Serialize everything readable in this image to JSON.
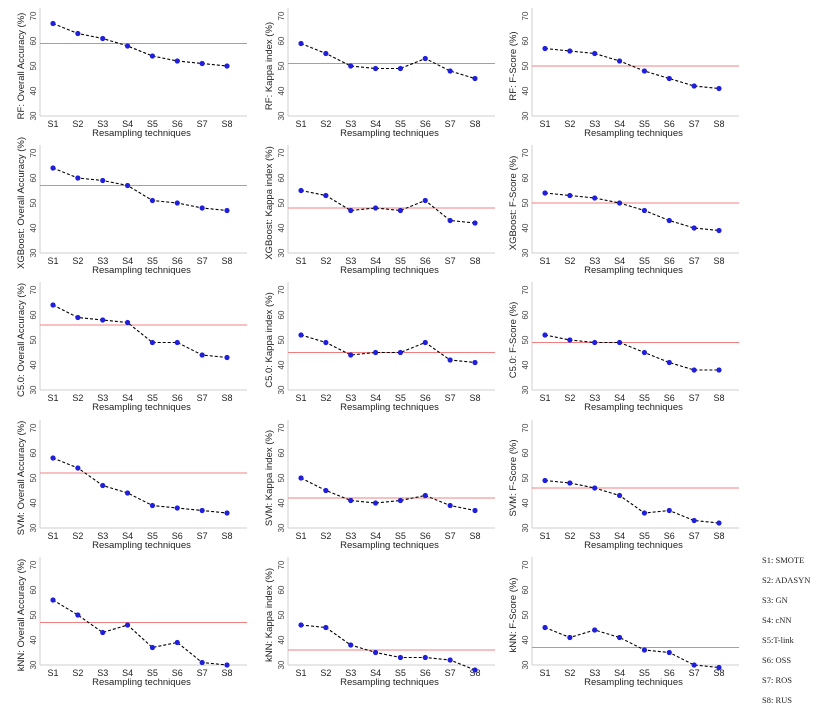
{
  "legend": {
    "items": [
      "S1: SMOTE",
      "S2: ADASYN",
      "S3: GN",
      "S4: cNN",
      "S5:T-link",
      "S6: OSS",
      "S7: ROS",
      "S8: RUS"
    ]
  },
  "colors": {
    "point": "#1f1fdc",
    "line": "#000000",
    "reference": "#f08080",
    "axis": "#cfcfcf",
    "text": "#444444"
  },
  "chart_data": [
    {
      "type": "line",
      "ylabel": "RF: Overall Accuracy (%)",
      "xlabel": "Resampling techniques",
      "categories": [
        "S1",
        "S2",
        "S3",
        "S4",
        "S5",
        "S6",
        "S7",
        "S8"
      ],
      "yticks": [
        30,
        40,
        50,
        60,
        70
      ],
      "ylim": [
        30,
        70
      ],
      "values": [
        67,
        63,
        61,
        58,
        54,
        52,
        51,
        50
      ],
      "reference": 59
    },
    {
      "type": "line",
      "ylabel": "RF: Kappa index (%)",
      "xlabel": "Resampling techniques",
      "categories": [
        "S1",
        "S2",
        "S3",
        "S4",
        "S5",
        "S6",
        "S7",
        "S8"
      ],
      "yticks": [
        30,
        40,
        50,
        60,
        70
      ],
      "ylim": [
        30,
        70
      ],
      "values": [
        59,
        55,
        50,
        49,
        49,
        53,
        48,
        45
      ],
      "reference": 51
    },
    {
      "type": "line",
      "ylabel": "RF: F-Score (%)",
      "xlabel": "Resampling techniques",
      "categories": [
        "S1",
        "S2",
        "S3",
        "S4",
        "S5",
        "S6",
        "S7",
        "S8"
      ],
      "yticks": [
        30,
        40,
        50,
        60,
        70
      ],
      "ylim": [
        30,
        70
      ],
      "values": [
        57,
        56,
        55,
        52,
        48,
        45,
        42,
        41
      ],
      "reference": 50
    },
    {
      "type": "line",
      "ylabel": "XGBoost: Overall Accuracy (%)",
      "xlabel": "Resampling techniques",
      "categories": [
        "S1",
        "S2",
        "S3",
        "S4",
        "S5",
        "S6",
        "S7",
        "S8"
      ],
      "yticks": [
        30,
        40,
        50,
        60,
        70
      ],
      "ylim": [
        30,
        70
      ],
      "values": [
        64,
        60,
        59,
        57,
        51,
        50,
        48,
        47
      ],
      "reference": 57
    },
    {
      "type": "line",
      "ylabel": "XGBoost: Kappa index (%)",
      "xlabel": "Resampling techniques",
      "categories": [
        "S1",
        "S2",
        "S3",
        "S4",
        "S5",
        "S6",
        "S7",
        "S8"
      ],
      "yticks": [
        30,
        40,
        50,
        60,
        70
      ],
      "ylim": [
        30,
        70
      ],
      "values": [
        55,
        53,
        47,
        48,
        47,
        51,
        43,
        42
      ],
      "reference": 48
    },
    {
      "type": "line",
      "ylabel": "XGBoost: F-Score (%)",
      "xlabel": "Resampling techniques",
      "categories": [
        "S1",
        "S2",
        "S3",
        "S4",
        "S5",
        "S6",
        "S7",
        "S8"
      ],
      "yticks": [
        30,
        40,
        50,
        60,
        70
      ],
      "ylim": [
        30,
        70
      ],
      "values": [
        54,
        53,
        52,
        50,
        47,
        43,
        40,
        39
      ],
      "reference": 50
    },
    {
      "type": "line",
      "ylabel": "C5.0: Overall Accuracy (%)",
      "xlabel": "Resampling techniques",
      "categories": [
        "S1",
        "S2",
        "S3",
        "S4",
        "S5",
        "S6",
        "S7",
        "S8"
      ],
      "yticks": [
        30,
        40,
        50,
        60,
        70
      ],
      "ylim": [
        30,
        70
      ],
      "values": [
        64,
        59,
        58,
        57,
        49,
        49,
        44,
        43
      ],
      "reference": 56
    },
    {
      "type": "line",
      "ylabel": "C5.0: Kappa index (%)",
      "xlabel": "Resampling techniques",
      "categories": [
        "S1",
        "S2",
        "S3",
        "S4",
        "S5",
        "S6",
        "S7",
        "S8"
      ],
      "yticks": [
        30,
        40,
        50,
        60,
        70
      ],
      "ylim": [
        30,
        70
      ],
      "values": [
        52,
        49,
        44,
        45,
        45,
        49,
        42,
        41
      ],
      "reference": 45
    },
    {
      "type": "line",
      "ylabel": "C5.0: F-Score (%)",
      "xlabel": "Resampling techniques",
      "categories": [
        "S1",
        "S2",
        "S3",
        "S4",
        "S5",
        "S6",
        "S7",
        "S8"
      ],
      "yticks": [
        30,
        40,
        50,
        60,
        70
      ],
      "ylim": [
        30,
        70
      ],
      "values": [
        52,
        50,
        49,
        49,
        45,
        41,
        38,
        38
      ],
      "reference": 49
    },
    {
      "type": "line",
      "ylabel": "SVM: Overall Accuracy (%)",
      "xlabel": "Resampling techniques",
      "categories": [
        "S1",
        "S2",
        "S3",
        "S4",
        "S5",
        "S6",
        "S7",
        "S8"
      ],
      "yticks": [
        30,
        40,
        50,
        60,
        70
      ],
      "ylim": [
        30,
        70
      ],
      "values": [
        58,
        54,
        47,
        44,
        39,
        38,
        37,
        36
      ],
      "reference": 52
    },
    {
      "type": "line",
      "ylabel": "SVM: Kappa index (%)",
      "xlabel": "Resampling techniques",
      "categories": [
        "S1",
        "S2",
        "S3",
        "S4",
        "S5",
        "S6",
        "S7",
        "S8"
      ],
      "yticks": [
        30,
        40,
        50,
        60,
        70
      ],
      "ylim": [
        30,
        70
      ],
      "values": [
        50,
        45,
        41,
        40,
        41,
        43,
        39,
        37
      ],
      "reference": 42
    },
    {
      "type": "line",
      "ylabel": "SVM: F-Score (%)",
      "xlabel": "Resampling techniques",
      "categories": [
        "S1",
        "S2",
        "S3",
        "S4",
        "S5",
        "S6",
        "S7",
        "S8"
      ],
      "yticks": [
        30,
        40,
        50,
        60,
        70
      ],
      "ylim": [
        30,
        70
      ],
      "values": [
        49,
        48,
        46,
        43,
        36,
        37,
        33,
        32
      ],
      "reference": 46
    },
    {
      "type": "line",
      "ylabel": "kNN: Overall Accuracy (%)",
      "xlabel": "Resampling techniques",
      "categories": [
        "S1",
        "S2",
        "S3",
        "S4",
        "S5",
        "S6",
        "S7",
        "S8"
      ],
      "yticks": [
        30,
        40,
        50,
        60,
        70
      ],
      "ylim": [
        30,
        70
      ],
      "values": [
        56,
        50,
        43,
        46,
        37,
        39,
        31,
        30
      ],
      "reference": 47
    },
    {
      "type": "line",
      "ylabel": "kNN: Kappa index (%)",
      "xlabel": "Resampling techniques",
      "categories": [
        "S1",
        "S2",
        "S3",
        "S4",
        "S5",
        "S6",
        "S7",
        "S8"
      ],
      "yticks": [
        30,
        40,
        50,
        60,
        70
      ],
      "ylim": [
        30,
        70
      ],
      "values": [
        46,
        45,
        38,
        35,
        33,
        33,
        32,
        28
      ],
      "reference": 36
    },
    {
      "type": "line",
      "ylabel": "kNN: F-Score (%)",
      "xlabel": "Resampling techniques",
      "categories": [
        "S1",
        "S2",
        "S3",
        "S4",
        "S5",
        "S6",
        "S7",
        "S8"
      ],
      "yticks": [
        30,
        40,
        50,
        60,
        70
      ],
      "ylim": [
        30,
        70
      ],
      "values": [
        45,
        41,
        44,
        41,
        36,
        35,
        30,
        29
      ],
      "reference": 37
    }
  ]
}
